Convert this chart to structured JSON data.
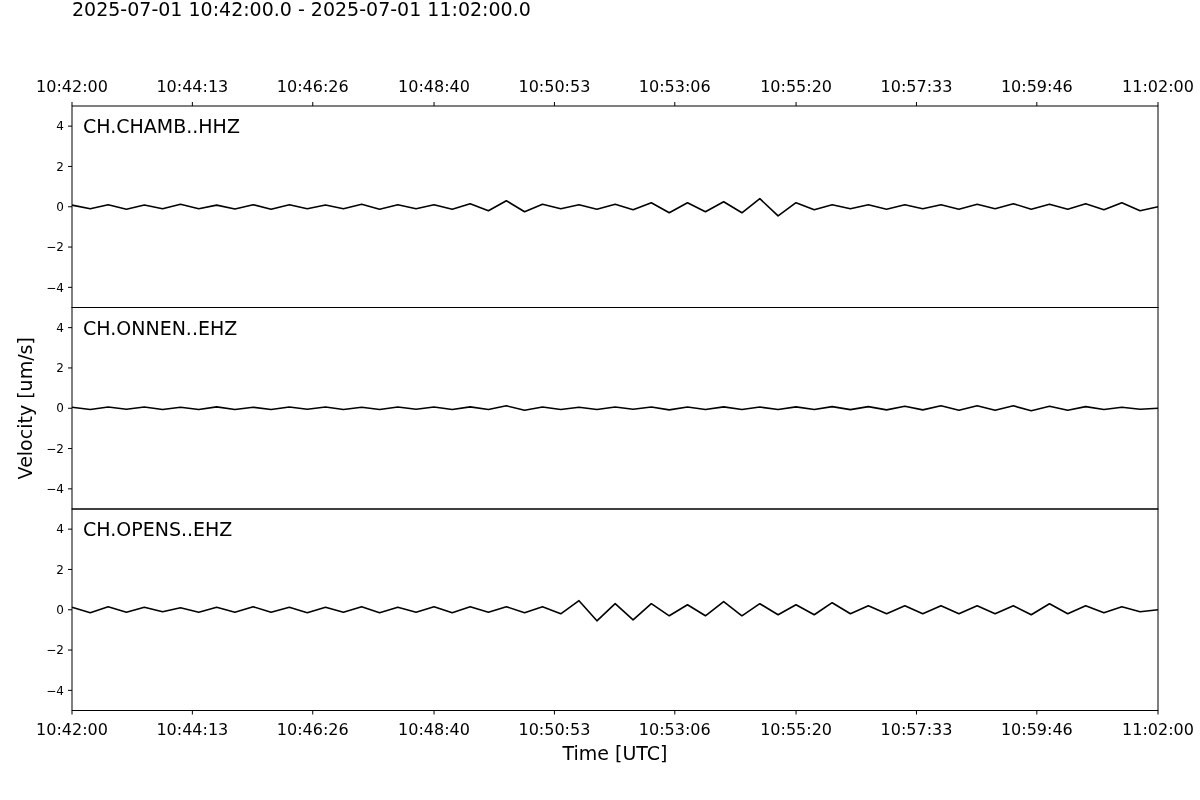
{
  "chart_data": [
    {
      "type": "line",
      "title": "2025-07-01 10:42:00.0 - 2025-07-01 11:02:00.0",
      "xlim": [
        10.7,
        11.0333
      ],
      "tick_labels": "y",
      "x2lim": [
        10.7,
        11.0333
      ],
      "x2ticks": [
        {
          "value": 10.7,
          "label": "10:42:00"
        },
        {
          "value": 10.73694,
          "label": "10:44:13"
        },
        {
          "value": 10.77389,
          "label": "10:46:26"
        },
        {
          "value": 10.81111,
          "label": "10:48:40"
        },
        {
          "value": 10.84806,
          "label": "10:50:53"
        },
        {
          "value": 10.885,
          "label": "10:53:06"
        },
        {
          "value": 10.92222,
          "label": "10:55:20"
        },
        {
          "value": 10.95917,
          "label": "10:57:33"
        },
        {
          "value": 10.99611,
          "label": "10:59:46"
        },
        {
          "value": 11.0333,
          "label": "11:02:00"
        }
      ],
      "ylim": [
        -5,
        5
      ],
      "yticks": [
        -4,
        -2,
        0,
        2,
        4
      ],
      "x": [
        10.7,
        10.7056,
        10.7111,
        10.7167,
        10.7222,
        10.7278,
        10.7333,
        10.7389,
        10.7444,
        10.75,
        10.7556,
        10.7611,
        10.7667,
        10.7722,
        10.7778,
        10.7833,
        10.7889,
        10.7944,
        10.8,
        10.8056,
        10.8111,
        10.8167,
        10.8222,
        10.8278,
        10.8333,
        10.8389,
        10.8444,
        10.85,
        10.8556,
        10.8611,
        10.8667,
        10.8722,
        10.8778,
        10.8833,
        10.8889,
        10.8944,
        10.9,
        10.9056,
        10.9111,
        10.9167,
        10.9222,
        10.9278,
        10.9333,
        10.9389,
        10.9444,
        10.95,
        10.9556,
        10.9611,
        10.9667,
        10.9722,
        10.9778,
        10.9833,
        10.9889,
        10.9944,
        11.0,
        11.0056,
        11.0111,
        11.0167,
        11.0222,
        11.0278,
        11.0333
      ],
      "series": [
        {
          "name": "CH.CHAMB..HHZ",
          "color": "#000000",
          "values": [
            0.08,
            -0.1,
            0.1,
            -0.12,
            0.09,
            -0.1,
            0.12,
            -0.1,
            0.08,
            -0.11,
            0.1,
            -0.12,
            0.1,
            -0.1,
            0.09,
            -0.1,
            0.12,
            -0.12,
            0.1,
            -0.1,
            0.1,
            -0.12,
            0.15,
            -0.2,
            0.3,
            -0.25,
            0.12,
            -0.1,
            0.1,
            -0.12,
            0.12,
            -0.15,
            0.2,
            -0.3,
            0.2,
            -0.25,
            0.25,
            -0.3,
            0.4,
            -0.45,
            0.2,
            -0.15,
            0.1,
            -0.1,
            0.1,
            -0.12,
            0.1,
            -0.1,
            0.1,
            -0.12,
            0.12,
            -0.1,
            0.15,
            -0.12,
            0.12,
            -0.12,
            0.15,
            -0.15,
            0.2,
            -0.2,
            0
          ]
        }
      ]
    },
    {
      "type": "line",
      "ylabel": "Velocity [um/s]",
      "xlim": [
        10.7,
        11.0333
      ],
      "tick_labels": "y",
      "ylim": [
        -5,
        5
      ],
      "yticks": [
        -4,
        -2,
        0,
        2,
        4
      ],
      "x": [
        10.7,
        10.7056,
        10.7111,
        10.7167,
        10.7222,
        10.7278,
        10.7333,
        10.7389,
        10.7444,
        10.75,
        10.7556,
        10.7611,
        10.7667,
        10.7722,
        10.7778,
        10.7833,
        10.7889,
        10.7944,
        10.8,
        10.8056,
        10.8111,
        10.8167,
        10.8222,
        10.8278,
        10.8333,
        10.8389,
        10.8444,
        10.85,
        10.8556,
        10.8611,
        10.8667,
        10.8722,
        10.8778,
        10.8833,
        10.8889,
        10.8944,
        10.9,
        10.9056,
        10.9111,
        10.9167,
        10.9222,
        10.9278,
        10.9333,
        10.9389,
        10.9444,
        10.95,
        10.9556,
        10.9611,
        10.9667,
        10.9722,
        10.9778,
        10.9833,
        10.9889,
        10.9944,
        11.0,
        11.0056,
        11.0111,
        11.0167,
        11.0222,
        11.0278,
        11.0333
      ],
      "series": [
        {
          "name": "CH.ONNEN..EHZ",
          "color": "#000000",
          "values": [
            0.05,
            -0.06,
            0.06,
            -0.05,
            0.06,
            -0.06,
            0.05,
            -0.06,
            0.07,
            -0.06,
            0.05,
            -0.06,
            0.06,
            -0.05,
            0.06,
            -0.06,
            0.05,
            -0.06,
            0.06,
            -0.05,
            0.06,
            -0.06,
            0.07,
            -0.06,
            0.12,
            -0.1,
            0.06,
            -0.06,
            0.05,
            -0.06,
            0.06,
            -0.05,
            0.06,
            -0.08,
            0.06,
            -0.06,
            0.07,
            -0.06,
            0.06,
            -0.06,
            0.07,
            -0.06,
            0.08,
            -0.07,
            0.08,
            -0.08,
            0.1,
            -0.08,
            0.12,
            -0.1,
            0.12,
            -0.1,
            0.12,
            -0.12,
            0.1,
            -0.1,
            0.08,
            -0.06,
            0.05,
            -0.05,
            0
          ]
        }
      ]
    },
    {
      "type": "line",
      "xlabel": "Time [UTC]",
      "xlim": [
        10.7,
        11.0333
      ],
      "xticks": [
        {
          "value": 10.7,
          "label": "10:42:00"
        },
        {
          "value": 10.73694,
          "label": "10:44:13"
        },
        {
          "value": 10.77389,
          "label": "10:46:26"
        },
        {
          "value": 10.81111,
          "label": "10:48:40"
        },
        {
          "value": 10.84806,
          "label": "10:50:53"
        },
        {
          "value": 10.885,
          "label": "10:53:06"
        },
        {
          "value": 10.92222,
          "label": "10:55:20"
        },
        {
          "value": 10.95917,
          "label": "10:57:33"
        },
        {
          "value": 10.99611,
          "label": "10:59:46"
        },
        {
          "value": 11.0333,
          "label": "11:02:00"
        }
      ],
      "ylim": [
        -5,
        5
      ],
      "yticks": [
        -4,
        -2,
        0,
        2,
        4
      ],
      "x": [
        10.7,
        10.7056,
        10.7111,
        10.7167,
        10.7222,
        10.7278,
        10.7333,
        10.7389,
        10.7444,
        10.75,
        10.7556,
        10.7611,
        10.7667,
        10.7722,
        10.7778,
        10.7833,
        10.7889,
        10.7944,
        10.8,
        10.8056,
        10.8111,
        10.8167,
        10.8222,
        10.8278,
        10.8333,
        10.8389,
        10.8444,
        10.85,
        10.8556,
        10.8611,
        10.8667,
        10.8722,
        10.8778,
        10.8833,
        10.8889,
        10.8944,
        10.9,
        10.9056,
        10.9111,
        10.9167,
        10.9222,
        10.9278,
        10.9333,
        10.9389,
        10.9444,
        10.95,
        10.9556,
        10.9611,
        10.9667,
        10.9722,
        10.9778,
        10.9833,
        10.9889,
        10.9944,
        11.0,
        11.0056,
        11.0111,
        11.0167,
        11.0222,
        11.0278,
        11.0333
      ],
      "series": [
        {
          "name": "CH.OPENS..EHZ",
          "color": "#000000",
          "values": [
            0.12,
            -0.15,
            0.15,
            -0.12,
            0.12,
            -0.1,
            0.1,
            -0.12,
            0.12,
            -0.12,
            0.15,
            -0.12,
            0.12,
            -0.15,
            0.12,
            -0.12,
            0.15,
            -0.15,
            0.12,
            -0.12,
            0.15,
            -0.15,
            0.15,
            -0.12,
            0.15,
            -0.15,
            0.15,
            -0.2,
            0.45,
            -0.55,
            0.3,
            -0.5,
            0.3,
            -0.3,
            0.25,
            -0.3,
            0.4,
            -0.3,
            0.3,
            -0.25,
            0.25,
            -0.25,
            0.35,
            -0.2,
            0.2,
            -0.2,
            0.2,
            -0.2,
            0.2,
            -0.2,
            0.2,
            -0.2,
            0.2,
            -0.25,
            0.3,
            -0.2,
            0.2,
            -0.15,
            0.15,
            -0.1,
            0
          ]
        }
      ]
    }
  ]
}
